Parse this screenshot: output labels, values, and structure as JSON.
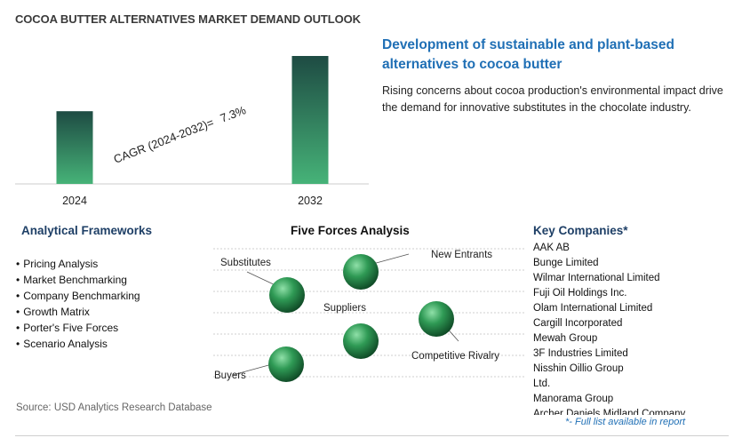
{
  "title": "COCOA BUTTER ALTERNATIVES MARKET DEMAND OUTLOOK",
  "chart_data": {
    "type": "bar",
    "categories": [
      "2024",
      "2032"
    ],
    "values": [
      1.0,
      1.76
    ],
    "value_note": "relative bar heights; no axis values printed",
    "annotation": {
      "label": "CAGR (2024-2032)=",
      "value": "7.3%"
    },
    "ylim": [
      0,
      1.76
    ],
    "grid": false,
    "legend": "none",
    "colors": {
      "bar_top": "#1e4b43",
      "bar_bottom": "#46b378",
      "axis": "#cccccc"
    }
  },
  "headline": "Development of sustainable and plant-based alternatives to cocoa butter",
  "description": "Rising concerns about cocoa production's environmental impact drive the demand for innovative substitutes in the chocolate industry.",
  "frameworks": {
    "title": "Analytical Frameworks",
    "items": [
      "Pricing Analysis",
      "Market Benchmarking",
      "Company Benchmarking",
      "Growth Matrix",
      "Porter's Five Forces",
      "Scenario Analysis"
    ]
  },
  "five_forces": {
    "title": "Five Forces Analysis",
    "labels": {
      "substitutes": "Substitutes",
      "new_entrants": "New Entrants",
      "suppliers": "Suppliers",
      "competitive_rivalry": "Competitive Rivalry",
      "buyers": "Buyers"
    },
    "colors": {
      "sphere_light": "#8fe0a8",
      "sphere_mid": "#2f9a55",
      "sphere_dark": "#0f4a26",
      "guide_line": "#cfcfcf"
    }
  },
  "companies": {
    "title": "Key Companies*",
    "items": [
      "AAK AB",
      "Bunge Limited",
      "Wilmar International Limited",
      "Fuji Oil Holdings Inc.",
      "Olam International Limited",
      "Cargill Incorporated",
      "Mewah Group",
      "3F Industries Limited",
      "Nisshin Oillio Group",
      "Ltd.",
      "Manorama Group",
      "Archer Daniels Midland Company"
    ],
    "note": "*- Full list available in report"
  },
  "source": "Source: USD Analytics Research Database"
}
